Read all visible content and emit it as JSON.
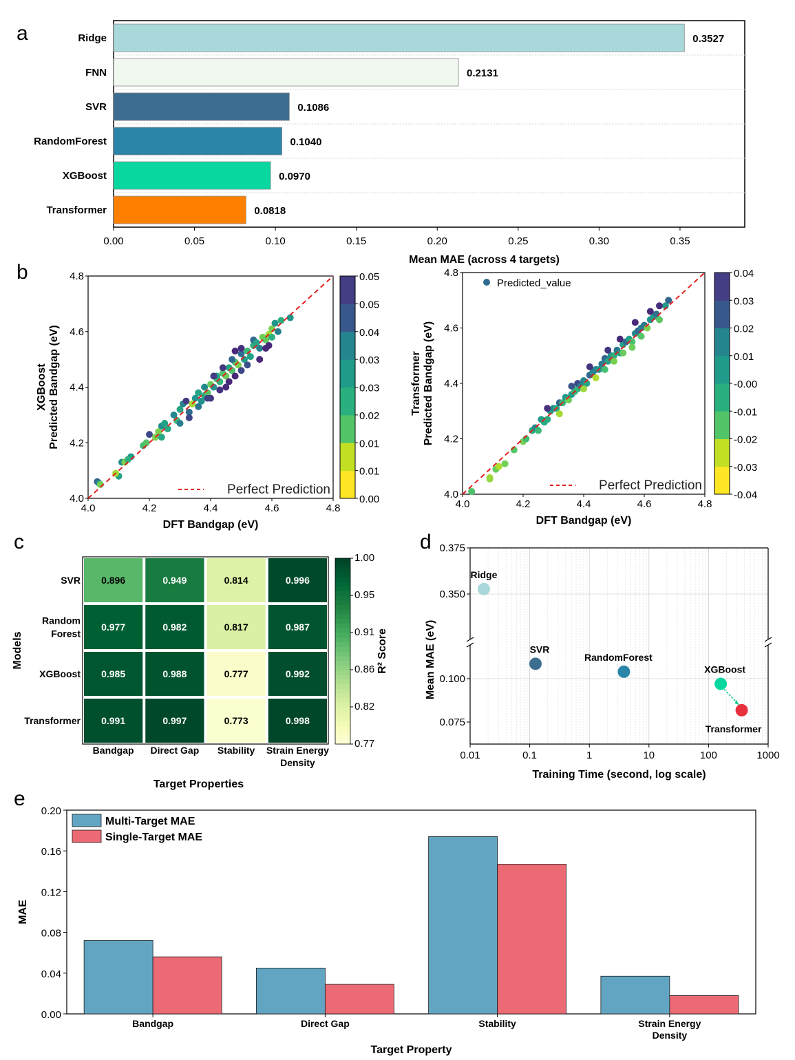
{
  "chart_data": [
    {
      "panel": "a",
      "type": "bar",
      "orientation": "horizontal",
      "categories": [
        "Ridge",
        "FNN",
        "SVR",
        "RandomForest",
        "XGBoost",
        "Transformer"
      ],
      "values": [
        0.3527,
        0.2131,
        0.1086,
        0.104,
        0.097,
        0.0818
      ],
      "value_labels": [
        "0.3527",
        "0.2131",
        "0.1086",
        "0.1040",
        "0.0970",
        "0.0818"
      ],
      "colors": [
        "#a8d8da",
        "#f0f8ef",
        "#3d6e92",
        "#2a85a8",
        "#08d8a0",
        "#ff8000"
      ],
      "xlabel": "Mean MAE (across 4 targets)",
      "xlim": [
        0,
        0.39
      ],
      "xticks": [
        0,
        0.05,
        0.1,
        0.15,
        0.2,
        0.25,
        0.3,
        0.35
      ],
      "xtick_labels": [
        "0.00",
        "0.05",
        "0.10",
        "0.15",
        "0.20",
        "0.25",
        "0.30",
        "0.35"
      ]
    },
    {
      "panel": "b-left",
      "type": "scatter",
      "xlabel": "DFT Bandgap (eV)",
      "ylabel_line1": "XGBoost",
      "ylabel_line2": "Predicted Bandgap (eV)",
      "xlim": [
        4.0,
        4.8
      ],
      "ylim": [
        4.0,
        4.8
      ],
      "ticks": [
        4.0,
        4.2,
        4.4,
        4.6,
        4.8
      ],
      "tick_labels": [
        "4.0",
        "4.2",
        "4.4",
        "4.6",
        "4.8"
      ],
      "legend": "Perfect Prediction",
      "colorbar_labels": [
        "0.00",
        "0.01",
        "0.01",
        "0.02",
        "0.03",
        "0.03",
        "0.04",
        "0.05",
        "0.05"
      ],
      "points": [
        [
          4.03,
          4.06
        ],
        [
          4.035,
          4.055
        ],
        [
          4.04,
          4.05
        ],
        [
          4.1,
          4.08
        ],
        [
          4.09,
          4.09
        ],
        [
          4.11,
          4.13
        ],
        [
          4.12,
          4.13
        ],
        [
          4.14,
          4.15
        ],
        [
          4.13,
          4.14
        ],
        [
          4.18,
          4.19
        ],
        [
          4.19,
          4.2
        ],
        [
          4.2,
          4.23
        ],
        [
          4.22,
          4.22
        ],
        [
          4.23,
          4.24
        ],
        [
          4.24,
          4.26
        ],
        [
          4.25,
          4.27
        ],
        [
          4.26,
          4.25
        ],
        [
          4.24,
          4.22
        ],
        [
          4.28,
          4.3
        ],
        [
          4.29,
          4.28
        ],
        [
          4.3,
          4.32
        ],
        [
          4.31,
          4.34
        ],
        [
          4.32,
          4.35
        ],
        [
          4.33,
          4.31
        ],
        [
          4.3,
          4.27
        ],
        [
          4.34,
          4.34
        ],
        [
          4.35,
          4.36
        ],
        [
          4.36,
          4.38
        ],
        [
          4.37,
          4.35
        ],
        [
          4.38,
          4.4
        ],
        [
          4.38,
          4.37
        ],
        [
          4.39,
          4.38
        ],
        [
          4.4,
          4.41
        ],
        [
          4.41,
          4.4
        ],
        [
          4.42,
          4.43
        ],
        [
          4.42,
          4.44
        ],
        [
          4.43,
          4.42
        ],
        [
          4.44,
          4.45
        ],
        [
          4.45,
          4.44
        ],
        [
          4.46,
          4.47
        ],
        [
          4.47,
          4.46
        ],
        [
          4.48,
          4.49
        ],
        [
          4.49,
          4.48
        ],
        [
          4.5,
          4.52
        ],
        [
          4.5,
          4.46
        ],
        [
          4.51,
          4.5
        ],
        [
          4.52,
          4.53
        ],
        [
          4.53,
          4.51
        ],
        [
          4.54,
          4.55
        ],
        [
          4.54,
          4.57
        ],
        [
          4.55,
          4.56
        ],
        [
          4.56,
          4.54
        ],
        [
          4.57,
          4.58
        ],
        [
          4.58,
          4.57
        ],
        [
          4.59,
          4.59
        ],
        [
          4.6,
          4.61
        ],
        [
          4.6,
          4.58
        ],
        [
          4.61,
          4.63
        ],
        [
          4.62,
          4.6
        ],
        [
          4.63,
          4.64
        ],
        [
          4.66,
          4.65
        ],
        [
          4.45,
          4.4
        ],
        [
          4.48,
          4.53
        ],
        [
          4.5,
          4.54
        ],
        [
          4.47,
          4.5
        ],
        [
          4.46,
          4.42
        ],
        [
          4.43,
          4.39
        ],
        [
          4.4,
          4.36
        ],
        [
          4.36,
          4.33
        ],
        [
          4.33,
          4.29
        ],
        [
          4.48,
          4.44
        ],
        [
          4.52,
          4.48
        ],
        [
          4.56,
          4.5
        ],
        [
          4.58,
          4.54
        ],
        [
          4.59,
          4.55
        ],
        [
          4.44,
          4.47
        ],
        [
          4.41,
          4.44
        ],
        [
          4.39,
          4.36
        ]
      ]
    },
    {
      "panel": "b-right",
      "type": "scatter",
      "xlabel": "DFT Bandgap (eV)",
      "ylabel_line1": "Transformer",
      "ylabel_line2": "Predicted Bandgap (eV)",
      "xlim": [
        4.0,
        4.8
      ],
      "ylim": [
        4.0,
        4.8
      ],
      "ticks": [
        4.0,
        4.2,
        4.4,
        4.6,
        4.8
      ],
      "tick_labels": [
        "4.0",
        "4.2",
        "4.4",
        "4.6",
        "4.8"
      ],
      "legend": "Perfect Prediction",
      "legend2": "Predicted_value",
      "colorbar_labels": [
        "-0.04",
        "-0.03",
        "-0.02",
        "-0.01",
        "-0.00",
        "0.01",
        "0.02",
        "0.03",
        "0.04"
      ],
      "points": [
        [
          4.03,
          4.01
        ],
        [
          4.09,
          4.06
        ],
        [
          4.09,
          4.055
        ],
        [
          4.11,
          4.09
        ],
        [
          4.12,
          4.1
        ],
        [
          4.14,
          4.11
        ],
        [
          4.17,
          4.16
        ],
        [
          4.2,
          4.19
        ],
        [
          4.21,
          4.2
        ],
        [
          4.23,
          4.23
        ],
        [
          4.24,
          4.24
        ],
        [
          4.25,
          4.23
        ],
        [
          4.26,
          4.27
        ],
        [
          4.27,
          4.26
        ],
        [
          4.28,
          4.27
        ],
        [
          4.29,
          4.3
        ],
        [
          4.3,
          4.31
        ],
        [
          4.31,
          4.31
        ],
        [
          4.32,
          4.29
        ],
        [
          4.32,
          4.33
        ],
        [
          4.33,
          4.33
        ],
        [
          4.34,
          4.35
        ],
        [
          4.35,
          4.34
        ],
        [
          4.36,
          4.36
        ],
        [
          4.37,
          4.37
        ],
        [
          4.38,
          4.38
        ],
        [
          4.38,
          4.4
        ],
        [
          4.39,
          4.39
        ],
        [
          4.4,
          4.41
        ],
        [
          4.41,
          4.4
        ],
        [
          4.42,
          4.43
        ],
        [
          4.43,
          4.44
        ],
        [
          4.44,
          4.45
        ],
        [
          4.45,
          4.45
        ],
        [
          4.46,
          4.47
        ],
        [
          4.47,
          4.49
        ],
        [
          4.48,
          4.48
        ],
        [
          4.49,
          4.5
        ],
        [
          4.5,
          4.5
        ],
        [
          4.51,
          4.52
        ],
        [
          4.52,
          4.51
        ],
        [
          4.53,
          4.54
        ],
        [
          4.54,
          4.55
        ],
        [
          4.55,
          4.56
        ],
        [
          4.56,
          4.55
        ],
        [
          4.57,
          4.58
        ],
        [
          4.58,
          4.59
        ],
        [
          4.59,
          4.6
        ],
        [
          4.6,
          4.61
        ],
        [
          4.61,
          4.6
        ],
        [
          4.62,
          4.63
        ],
        [
          4.63,
          4.64
        ],
        [
          4.64,
          4.65
        ],
        [
          4.65,
          4.63
        ],
        [
          4.67,
          4.68
        ],
        [
          4.68,
          4.7
        ],
        [
          4.4,
          4.38
        ],
        [
          4.44,
          4.42
        ],
        [
          4.47,
          4.45
        ],
        [
          4.5,
          4.48
        ],
        [
          4.53,
          4.51
        ],
        [
          4.56,
          4.53
        ],
        [
          4.59,
          4.57
        ],
        [
          4.28,
          4.31
        ],
        [
          4.36,
          4.39
        ],
        [
          4.42,
          4.46
        ],
        [
          4.48,
          4.52
        ],
        [
          4.52,
          4.56
        ],
        [
          4.57,
          4.62
        ],
        [
          4.62,
          4.66
        ],
        [
          4.65,
          4.68
        ]
      ]
    },
    {
      "panel": "c",
      "type": "heatmap",
      "rows": [
        "SVR",
        "Random Forest",
        "XGBoost",
        "Transformer"
      ],
      "row_label_lines": [
        [
          "SVR"
        ],
        [
          "Random",
          "Forest"
        ],
        [
          "XGBoost"
        ],
        [
          "Transformer"
        ]
      ],
      "columns": [
        "Bandgap",
        "Direct Gap",
        "Stability",
        "Strain Energy Density"
      ],
      "column_label_lines": [
        [
          "Bandgap"
        ],
        [
          "Direct Gap"
        ],
        [
          "Stability"
        ],
        [
          "Strain Energy",
          "Density"
        ]
      ],
      "values": [
        [
          0.896,
          0.949,
          0.814,
          0.996
        ],
        [
          0.977,
          0.982,
          0.817,
          0.987
        ],
        [
          0.985,
          0.988,
          0.777,
          0.992
        ],
        [
          0.991,
          0.997,
          0.773,
          0.998
        ]
      ],
      "value_labels": [
        [
          "0.896",
          "0.949",
          "0.814",
          "0.996"
        ],
        [
          "0.977",
          "0.982",
          "0.817",
          "0.987"
        ],
        [
          "0.985",
          "0.988",
          "0.777",
          "0.992"
        ],
        [
          "0.991",
          "0.997",
          "0.773",
          "0.998"
        ]
      ],
      "xlabel": "Target Properties",
      "ylabel": "Models",
      "colorbar_label": "R² Score",
      "colorbar_ticks": [
        "0.77",
        "0.82",
        "0.86",
        "0.91",
        "0.95",
        "1.00"
      ],
      "vmin": 0.77,
      "vmax": 1.0
    },
    {
      "panel": "d",
      "type": "scatter",
      "xscale": "log",
      "xlabel": "Training Time (second, log scale)",
      "ylabel": "Mean MAE (eV)",
      "xlim": [
        0.01,
        1000
      ],
      "xtick_labels": [
        "0.01",
        "0.1",
        "1",
        "10",
        "100",
        "1000"
      ],
      "ytick_labels_upper": [
        "0.375",
        "0.350"
      ],
      "ytick_labels_lower": [
        "0.100",
        "0.075"
      ],
      "points": [
        {
          "name": "Ridge",
          "x": 0.017,
          "y": 0.3527,
          "color": "#a8d8da"
        },
        {
          "name": "SVR",
          "x": 0.125,
          "y": 0.1086,
          "color": "#3d6e92"
        },
        {
          "name": "RandomForest",
          "x": 3.8,
          "y": 0.104,
          "color": "#2a85a8"
        },
        {
          "name": "XGBoost",
          "x": 160,
          "y": 0.097,
          "color": "#08d8a0"
        },
        {
          "name": "Transformer",
          "x": 360,
          "y": 0.0818,
          "color": "#e8303f"
        }
      ]
    },
    {
      "panel": "e",
      "type": "bar",
      "categories": [
        "Bandgap",
        "Direct Gap",
        "Stability",
        "Strain Energy Density"
      ],
      "category_label_lines": [
        [
          "Bandgap"
        ],
        [
          "Direct Gap"
        ],
        [
          "Stability"
        ],
        [
          "Strain Energy",
          "Density"
        ]
      ],
      "series": [
        {
          "name": "Multi-Target MAE",
          "values": [
            0.072,
            0.045,
            0.174,
            0.037
          ],
          "color": "#62a5c2"
        },
        {
          "name": "Single-Target MAE",
          "values": [
            0.056,
            0.029,
            0.147,
            0.018
          ],
          "color": "#eb6a74"
        }
      ],
      "xlabel": "Target Property",
      "ylabel": "MAE",
      "ylim": [
        0,
        0.2
      ],
      "yticks": [
        0,
        0.04,
        0.08,
        0.12,
        0.16,
        0.2
      ],
      "ytick_labels": [
        "0.00",
        "0.04",
        "0.08",
        "0.12",
        "0.16",
        "0.20"
      ]
    }
  ],
  "panel_letters": [
    "a",
    "b",
    "c",
    "d",
    "e"
  ]
}
